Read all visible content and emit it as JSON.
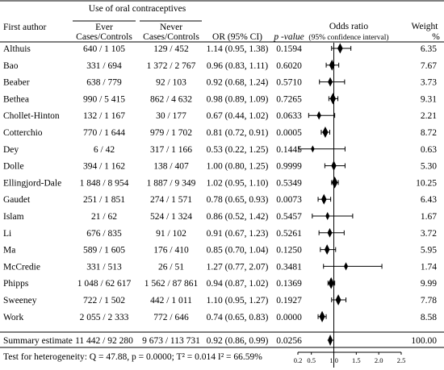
{
  "header": {
    "group_title": "Use of oral contraceptives",
    "ever_label": "Ever",
    "never_label": "Never",
    "first_author_label": "First author",
    "cases_controls_ever": "Cases/Controls",
    "cases_controls_never": "Cases/Controls",
    "or_label": "OR (95% CI)",
    "p_label": "p -value",
    "odds_ratio_label": "Odds ratio",
    "ci_label": "(95% confidence interval)",
    "weight_label": "Weight",
    "weight_unit": "%"
  },
  "chart_data": {
    "type": "forest",
    "studies": [
      {
        "author": "Althuis",
        "ever": "640 / 1 105",
        "never": "129 / 452",
        "or": 1.14,
        "lo": 0.95,
        "hi": 1.38,
        "or_text": "1.14 (0.95, 1.38)",
        "p": "0.1594",
        "weight": "6.35"
      },
      {
        "author": "Bao",
        "ever": "331 / 694",
        "never": "1 372 / 2 767",
        "or": 0.96,
        "lo": 0.83,
        "hi": 1.11,
        "or_text": "0.96 (0.83, 1.11)",
        "p": "0.6020",
        "weight": "7.67"
      },
      {
        "author": "Beaber",
        "ever": "638 / 779",
        "never": "92 / 103",
        "or": 0.92,
        "lo": 0.68,
        "hi": 1.24,
        "or_text": "0.92 (0.68, 1.24)",
        "p": "0.5710",
        "weight": "3.73"
      },
      {
        "author": "Bethea",
        "ever": "990 / 5 415",
        "never": "862 / 4 632",
        "or": 0.98,
        "lo": 0.89,
        "hi": 1.09,
        "or_text": "0.98 (0.89, 1.09)",
        "p": "0.7265",
        "weight": "9.31"
      },
      {
        "author": "Chollet-Hinton",
        "ever": "132 / 1 167",
        "never": "30 / 177",
        "or": 0.67,
        "lo": 0.44,
        "hi": 1.02,
        "or_text": "0.67 (0.44, 1.02)",
        "p": "0.0633",
        "weight": "2.21"
      },
      {
        "author": "Cotterchio",
        "ever": "770 / 1 644",
        "never": "979 / 1 702",
        "or": 0.81,
        "lo": 0.72,
        "hi": 0.91,
        "or_text": "0.81 (0.72, 0.91)",
        "p": "0.0005",
        "weight": "8.72"
      },
      {
        "author": "Dey",
        "ever": "6 / 42",
        "never": "317 / 1 166",
        "or": 0.53,
        "lo": 0.22,
        "hi": 1.25,
        "or_text": "0.53 (0.22, 1.25)",
        "p": "0.1445",
        "weight": "0.63"
      },
      {
        "author": "Dolle",
        "ever": "394 / 1 162",
        "never": "138 / 407",
        "or": 1.0,
        "lo": 0.8,
        "hi": 1.25,
        "or_text": "1.00 (0.80, 1.25)",
        "p": "0.9999",
        "weight": "5.30"
      },
      {
        "author": "Ellingjord-Dale",
        "ever": "1 848 / 8 954",
        "never": "1 887 / 9 349",
        "or": 1.02,
        "lo": 0.95,
        "hi": 1.1,
        "or_text": "1.02 (0.95, 1.10)",
        "p": "0.5349",
        "weight": "10.25"
      },
      {
        "author": "Gaudet",
        "ever": "251 / 1 851",
        "never": "274 / 1 571",
        "or": 0.78,
        "lo": 0.65,
        "hi": 0.93,
        "or_text": "0.78 (0.65, 0.93)",
        "p": "0.0073",
        "weight": "6.43"
      },
      {
        "author": "Islam",
        "ever": "21 / 62",
        "never": "524 / 1 324",
        "or": 0.86,
        "lo": 0.52,
        "hi": 1.42,
        "or_text": "0.86 (0.52, 1.42)",
        "p": "0.5457",
        "weight": "1.67"
      },
      {
        "author": "Li",
        "ever": "676 / 835",
        "never": "91 / 102",
        "or": 0.91,
        "lo": 0.67,
        "hi": 1.23,
        "or_text": "0.91 (0.67, 1.23)",
        "p": "0.5261",
        "weight": "3.72"
      },
      {
        "author": "Ma",
        "ever": "589 / 1 605",
        "never": "176 / 410",
        "or": 0.85,
        "lo": 0.7,
        "hi": 1.04,
        "or_text": "0.85 (0.70, 1.04)",
        "p": "0.1250",
        "weight": "5.95"
      },
      {
        "author": "McCredie",
        "ever": "331 / 513",
        "never": "26 / 51",
        "or": 1.27,
        "lo": 0.77,
        "hi": 2.07,
        "or_text": "1.27 (0.77, 2.07)",
        "p": "0.3481",
        "weight": "1.74"
      },
      {
        "author": "Phipps",
        "ever": "1 048 / 62 617",
        "never": "1 562 / 87 861",
        "or": 0.94,
        "lo": 0.87,
        "hi": 1.02,
        "or_text": "0.94 (0.87, 1.02)",
        "p": "0.1369",
        "weight": "9.99"
      },
      {
        "author": "Sweeney",
        "ever": "722 / 1 502",
        "never": "442 / 1 011",
        "or": 1.1,
        "lo": 0.95,
        "hi": 1.27,
        "or_text": "1.10 (0.95, 1.27)",
        "p": "0.1927",
        "weight": "7.78"
      },
      {
        "author": "Work",
        "ever": "2 055 / 2 333",
        "never": "772 / 646",
        "or": 0.74,
        "lo": 0.65,
        "hi": 0.83,
        "or_text": "0.74 (0.65, 0.83)",
        "p": "0.0000",
        "weight": "8.58"
      }
    ],
    "summary": {
      "author": "Summary estimate",
      "ever": "11 442 / 92 280",
      "never": "9 673 / 113 731",
      "or": 0.92,
      "lo": 0.86,
      "hi": 0.99,
      "or_text": "0.92 (0.86, 0.99)",
      "p": "0.0256",
      "weight": "100.00"
    },
    "heterogeneity": "Test for heterogeneity: Q = 47.88, p = 0.0000; T² = 0.014 I² = 66.59%",
    "x_ticks": [
      {
        "v": 0.2,
        "label": "0.2"
      },
      {
        "v": 0.5,
        "label": "0.5"
      },
      {
        "v": 1.0,
        "label": "1.0"
      },
      {
        "v": 1.5,
        "label": "1.5"
      },
      {
        "v": 2.0,
        "label": "2.0"
      },
      {
        "v": 2.5,
        "label": "2.5"
      }
    ],
    "xlim": [
      0.2,
      2.5
    ],
    "reference_line": 1.0
  }
}
